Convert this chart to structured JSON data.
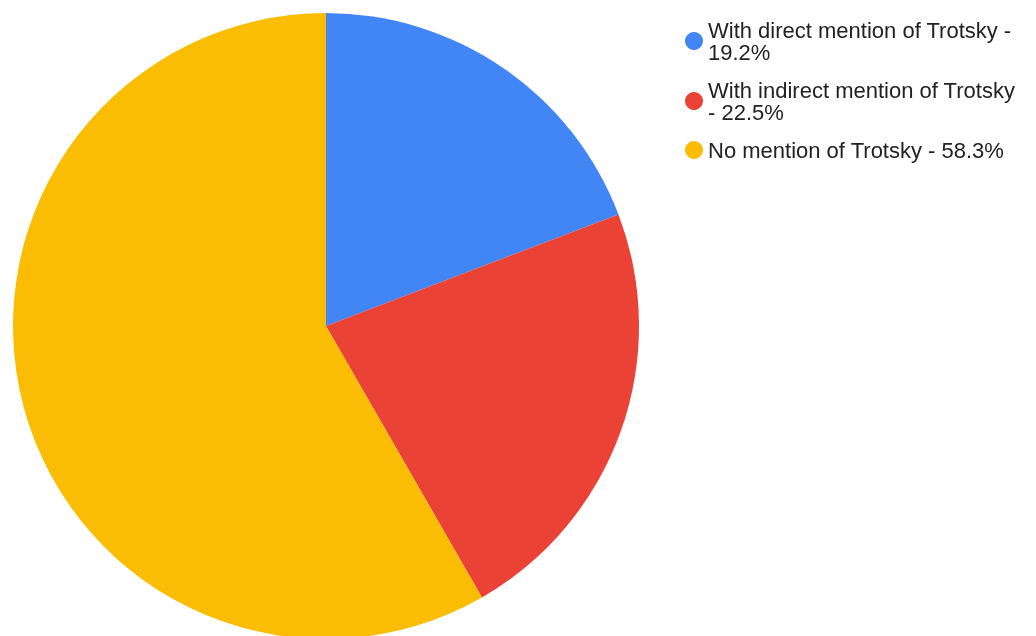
{
  "chart_data": {
    "type": "pie",
    "categories": [
      "With direct mention of Trotsky - 19.2%",
      "With indirect mention of Trotsky - 22.5%",
      "No mention of Trotsky - 58.3%"
    ],
    "values": [
      19.2,
      22.5,
      58.3
    ],
    "colors": [
      "#4285f4",
      "#ea4335",
      "#fbbc04"
    ],
    "legend": "top right"
  }
}
